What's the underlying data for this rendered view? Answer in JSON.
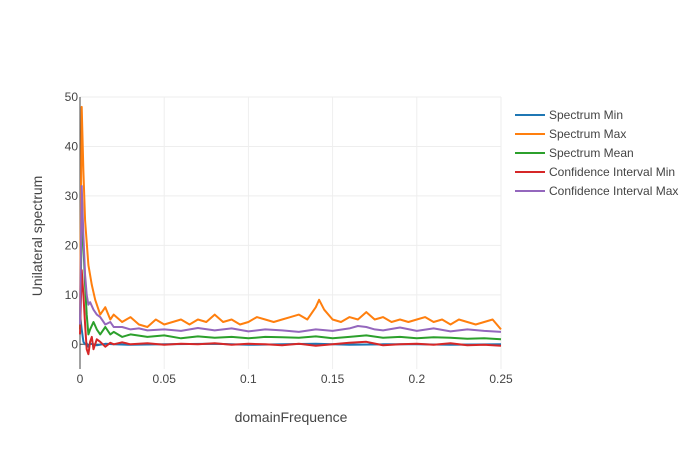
{
  "chart_data": {
    "type": "line",
    "title": "",
    "xlabel": "domainFrequence",
    "ylabel": "Unilateral spectrum",
    "xlim": [
      0,
      0.25
    ],
    "ylim": [
      -5,
      50
    ],
    "x_ticks": [
      0,
      0.05,
      0.1,
      0.15,
      0.2,
      0.25
    ],
    "x_tick_labels": [
      "0",
      "0.05",
      "0.1",
      "0.15",
      "0.2",
      "0.25"
    ],
    "y_ticks": [
      0,
      10,
      20,
      30,
      40,
      50
    ],
    "y_tick_labels": [
      "0",
      "10",
      "20",
      "30",
      "40",
      "50"
    ],
    "grid": true,
    "legend_position": "top-right",
    "series": [
      {
        "name": "Spectrum Min",
        "color": "#1f77b4",
        "x": [
          0,
          0.001,
          0.002,
          0.003,
          0.004,
          0.005,
          0.006,
          0.008,
          0.01,
          0.015,
          0.02,
          0.03,
          0.05,
          0.08,
          0.1,
          0.12,
          0.14,
          0.16,
          0.18,
          0.2,
          0.22,
          0.25
        ],
        "y": [
          6,
          3,
          0.5,
          0,
          0.2,
          -0.5,
          0.1,
          0,
          -0.2,
          0.1,
          0,
          -0.1,
          0,
          0.1,
          -0.1,
          0,
          0.1,
          -0.1,
          0,
          0,
          -0.1,
          0
        ]
      },
      {
        "name": "Spectrum Max",
        "color": "#ff7f0e",
        "x": [
          0,
          0.001,
          0.002,
          0.003,
          0.005,
          0.007,
          0.009,
          0.012,
          0.015,
          0.018,
          0.02,
          0.025,
          0.03,
          0.035,
          0.04,
          0.045,
          0.05,
          0.055,
          0.06,
          0.065,
          0.07,
          0.075,
          0.08,
          0.085,
          0.09,
          0.095,
          0.1,
          0.105,
          0.11,
          0.115,
          0.12,
          0.125,
          0.13,
          0.135,
          0.14,
          0.142,
          0.145,
          0.15,
          0.155,
          0.16,
          0.165,
          0.17,
          0.175,
          0.18,
          0.185,
          0.19,
          0.195,
          0.2,
          0.205,
          0.21,
          0.215,
          0.22,
          0.225,
          0.23,
          0.235,
          0.24,
          0.245,
          0.25
        ],
        "y": [
          5,
          48,
          35,
          25,
          16,
          12,
          9,
          6,
          7.5,
          5,
          6,
          4.5,
          5.5,
          4,
          3.5,
          5,
          4,
          4.5,
          5,
          4,
          5,
          4.5,
          6,
          4.5,
          5,
          4,
          4.5,
          5.5,
          5,
          4.5,
          5,
          5.5,
          6,
          5,
          7.5,
          9,
          7,
          5,
          4.5,
          5.5,
          5,
          6.5,
          5,
          5.5,
          4.5,
          5,
          4.5,
          5,
          5.5,
          4.5,
          5,
          4,
          5,
          4.5,
          4,
          4.5,
          5,
          3
        ]
      },
      {
        "name": "Spectrum Mean",
        "color": "#2ca02c",
        "x": [
          0,
          0.001,
          0.002,
          0.003,
          0.004,
          0.005,
          0.006,
          0.008,
          0.01,
          0.012,
          0.015,
          0.018,
          0.02,
          0.025,
          0.03,
          0.04,
          0.05,
          0.06,
          0.07,
          0.08,
          0.09,
          0.1,
          0.11,
          0.12,
          0.13,
          0.14,
          0.15,
          0.16,
          0.17,
          0.18,
          0.19,
          0.2,
          0.21,
          0.22,
          0.23,
          0.24,
          0.25
        ],
        "y": [
          3,
          24,
          20,
          12,
          6,
          2,
          3,
          4.5,
          3,
          2,
          3.5,
          2,
          2.5,
          1.5,
          2,
          1.5,
          1.8,
          1.2,
          1.6,
          1.3,
          1.5,
          1.2,
          1.5,
          1.4,
          1.3,
          1.6,
          1.2,
          1.5,
          1.8,
          1.3,
          1.5,
          1.2,
          1.4,
          1.3,
          1.1,
          1.2,
          1.0
        ]
      },
      {
        "name": "Confidence Interval Min",
        "color": "#d62728",
        "x": [
          0,
          0.001,
          0.002,
          0.003,
          0.004,
          0.005,
          0.006,
          0.007,
          0.008,
          0.01,
          0.012,
          0.015,
          0.018,
          0.02,
          0.025,
          0.03,
          0.04,
          0.05,
          0.06,
          0.07,
          0.08,
          0.09,
          0.1,
          0.11,
          0.12,
          0.13,
          0.14,
          0.15,
          0.16,
          0.17,
          0.18,
          0.19,
          0.2,
          0.21,
          0.22,
          0.23,
          0.24,
          0.25
        ],
        "y": [
          2,
          15,
          10,
          4,
          -1,
          -2,
          0.5,
          1.5,
          -1,
          1,
          0.5,
          -0.5,
          0.3,
          0,
          0.4,
          0,
          0.2,
          -0.1,
          0.1,
          0,
          0.2,
          -0.1,
          0.1,
          0,
          -0.2,
          0.1,
          -0.3,
          0,
          0.3,
          0.5,
          -0.2,
          0,
          0.1,
          -0.1,
          0.2,
          -0.2,
          -0.1,
          -0.3
        ]
      },
      {
        "name": "Confidence Interval Max",
        "color": "#9467bd",
        "x": [
          0,
          0.001,
          0.002,
          0.003,
          0.004,
          0.005,
          0.006,
          0.008,
          0.01,
          0.012,
          0.015,
          0.018,
          0.02,
          0.025,
          0.03,
          0.035,
          0.04,
          0.05,
          0.06,
          0.07,
          0.08,
          0.09,
          0.1,
          0.11,
          0.12,
          0.13,
          0.14,
          0.15,
          0.16,
          0.165,
          0.17,
          0.175,
          0.18,
          0.19,
          0.2,
          0.21,
          0.22,
          0.23,
          0.24,
          0.25
        ],
        "y": [
          4,
          32,
          22,
          14,
          10,
          8,
          8.5,
          7,
          6,
          5.5,
          4,
          4.5,
          3.5,
          3.5,
          3,
          3.2,
          2.8,
          3,
          2.7,
          3.3,
          2.8,
          3.2,
          2.6,
          3,
          2.8,
          2.5,
          3,
          2.7,
          3.2,
          3.7,
          3.5,
          3,
          2.8,
          3.4,
          2.7,
          3.2,
          2.6,
          3,
          2.7,
          2.5
        ]
      }
    ]
  }
}
